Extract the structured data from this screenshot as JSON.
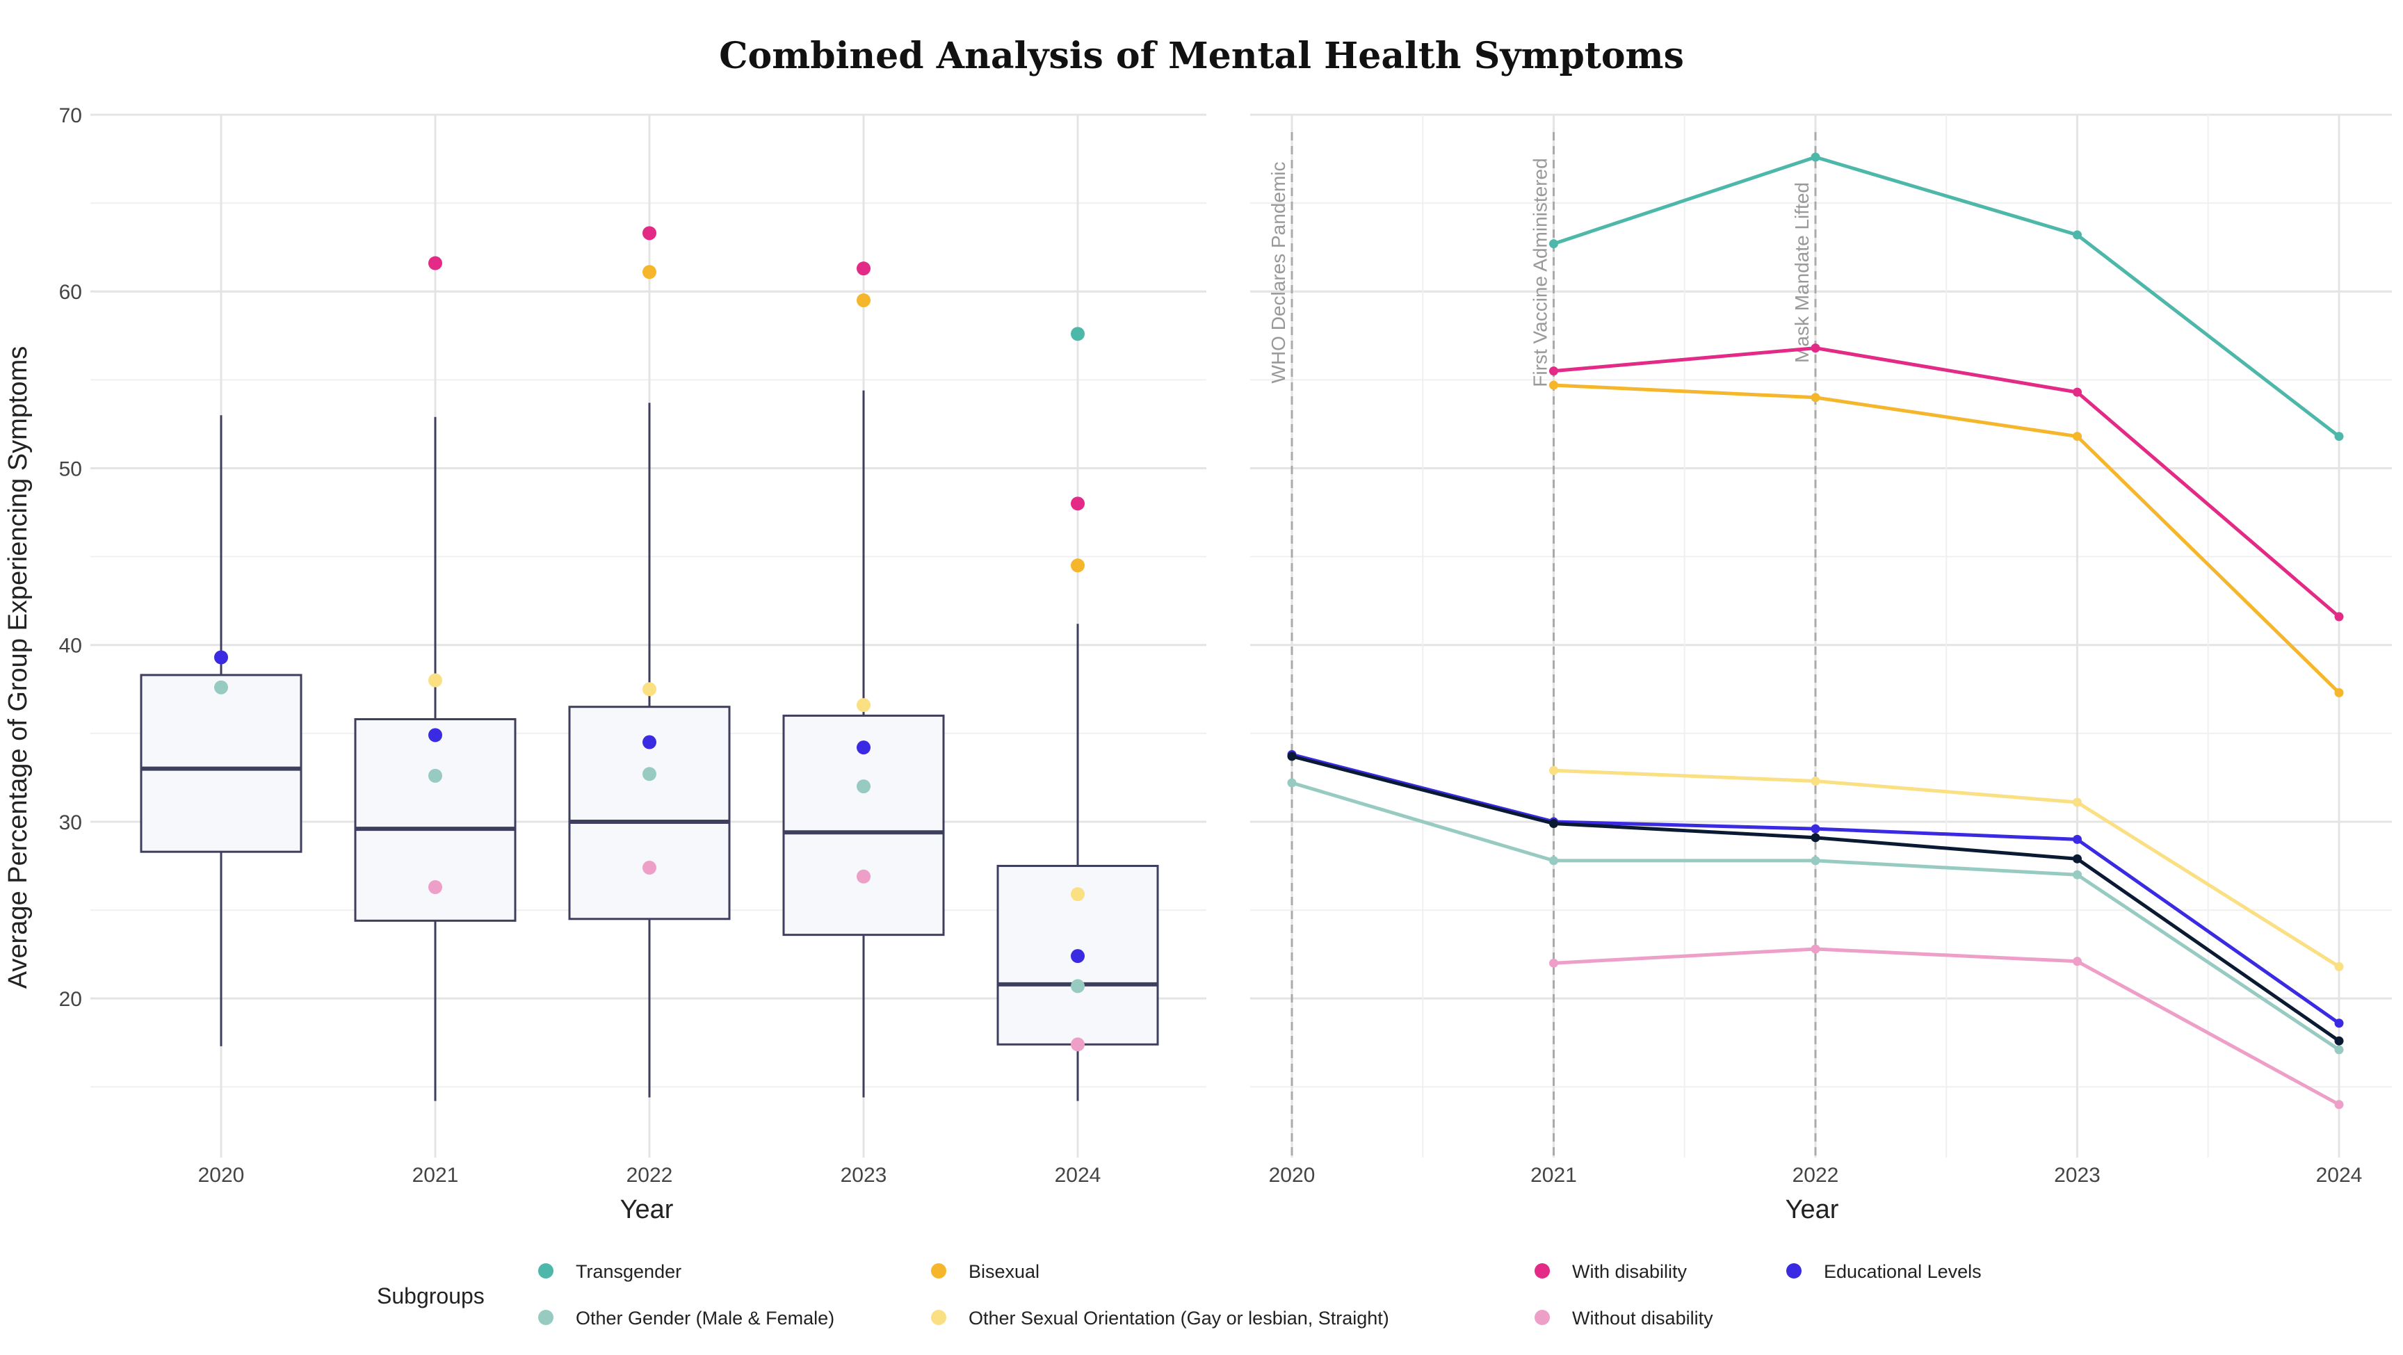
{
  "title": "Combined Analysis of Mental Health Symptoms",
  "legend": {
    "title": "Subgroups",
    "items": [
      {
        "label": "Transgender",
        "color": "#4DB8A9"
      },
      {
        "label": "Other Gender (Male & Female)",
        "color": "#97CBC2"
      },
      {
        "label": "Bisexual",
        "color": "#F6B62B"
      },
      {
        "label": "Other Sexual Orientation (Gay or lesbian, Straight)",
        "color": "#FADF83"
      },
      {
        "label": "With disability",
        "color": "#E22A86"
      },
      {
        "label": "Without disability",
        "color": "#ED9FC8"
      },
      {
        "label": "Educational Levels",
        "color": "#3A2BE2"
      }
    ]
  },
  "chart_data": [
    {
      "type": "box",
      "panel": "left",
      "ylabel": "Average Percentage of Group Experiencing Symptoms",
      "xlabel": "Year",
      "categories": [
        "2020",
        "2021",
        "2022",
        "2023",
        "2024"
      ],
      "ylim": [
        11,
        70
      ],
      "yticks": [
        20,
        30,
        40,
        50,
        60,
        70
      ],
      "grid": true,
      "box_fill": "#F7F8FB",
      "box_stroke": "#3E3E5E",
      "boxes": [
        {
          "category": "2020",
          "q1": 28.3,
          "median": 33.0,
          "q3": 38.3,
          "whisker_low": 17.3,
          "whisker_high": 53.0
        },
        {
          "category": "2021",
          "q1": 24.4,
          "median": 29.6,
          "q3": 35.8,
          "whisker_low": 14.2,
          "whisker_high": 52.9
        },
        {
          "category": "2022",
          "q1": 24.5,
          "median": 30.0,
          "q3": 36.5,
          "whisker_low": 14.4,
          "whisker_high": 53.7
        },
        {
          "category": "2023",
          "q1": 23.6,
          "median": 29.4,
          "q3": 36.0,
          "whisker_low": 14.4,
          "whisker_high": 54.4
        },
        {
          "category": "2024",
          "q1": 17.4,
          "median": 20.8,
          "q3": 27.5,
          "whisker_low": 14.2,
          "whisker_high": 41.2
        }
      ],
      "points": [
        {
          "category": "2020",
          "series": "Educational Levels",
          "value": 39.3
        },
        {
          "category": "2020",
          "series": "Other Gender (Male & Female)",
          "value": 37.6
        },
        {
          "category": "2021",
          "series": "With disability",
          "value": 61.6
        },
        {
          "category": "2021",
          "series": "Other Sexual Orientation (Gay or lesbian, Straight)",
          "value": 38.0
        },
        {
          "category": "2021",
          "series": "Educational Levels",
          "value": 34.9
        },
        {
          "category": "2021",
          "series": "Other Gender (Male & Female)",
          "value": 32.6
        },
        {
          "category": "2021",
          "series": "Without disability",
          "value": 26.3
        },
        {
          "category": "2022",
          "series": "With disability",
          "value": 63.3
        },
        {
          "category": "2022",
          "series": "Bisexual",
          "value": 61.1
        },
        {
          "category": "2022",
          "series": "Other Sexual Orientation (Gay or lesbian, Straight)",
          "value": 37.5
        },
        {
          "category": "2022",
          "series": "Educational Levels",
          "value": 34.5
        },
        {
          "category": "2022",
          "series": "Other Gender (Male & Female)",
          "value": 32.7
        },
        {
          "category": "2022",
          "series": "Without disability",
          "value": 27.4
        },
        {
          "category": "2023",
          "series": "With disability",
          "value": 61.3
        },
        {
          "category": "2023",
          "series": "Bisexual",
          "value": 59.5
        },
        {
          "category": "2023",
          "series": "Other Sexual Orientation (Gay or lesbian, Straight)",
          "value": 36.6
        },
        {
          "category": "2023",
          "series": "Educational Levels",
          "value": 34.2
        },
        {
          "category": "2023",
          "series": "Other Gender (Male & Female)",
          "value": 32.0
        },
        {
          "category": "2023",
          "series": "Without disability",
          "value": 26.9
        },
        {
          "category": "2024",
          "series": "Transgender",
          "value": 57.6
        },
        {
          "category": "2024",
          "series": "With disability",
          "value": 48.0
        },
        {
          "category": "2024",
          "series": "Bisexual",
          "value": 44.5
        },
        {
          "category": "2024",
          "series": "Other Sexual Orientation (Gay or lesbian, Straight)",
          "value": 25.9
        },
        {
          "category": "2024",
          "series": "Educational Levels",
          "value": 22.4
        },
        {
          "category": "2024",
          "series": "Other Gender (Male & Female)",
          "value": 20.7
        },
        {
          "category": "2024",
          "series": "Without disability",
          "value": 17.4
        }
      ]
    },
    {
      "type": "line",
      "panel": "right",
      "xlabel": "Year",
      "x": [
        "2020",
        "2021",
        "2022",
        "2023",
        "2024"
      ],
      "ylim": [
        11,
        70
      ],
      "grid": true,
      "annotations": [
        {
          "x": "2020",
          "label": "WHO Declares Pandemic"
        },
        {
          "x": "2021",
          "label": "First Vaccine Administered"
        },
        {
          "x": "2022",
          "label": "Mask Mandate Lifted"
        }
      ],
      "series": [
        {
          "name": "Transgender",
          "color": "#4DB8A9",
          "values": [
            null,
            62.7,
            67.6,
            63.2,
            51.8
          ]
        },
        {
          "name": "With disability",
          "color": "#E22A86",
          "values": [
            null,
            55.5,
            56.8,
            54.3,
            41.6
          ]
        },
        {
          "name": "Bisexual",
          "color": "#F6B62B",
          "values": [
            null,
            54.7,
            54.0,
            51.8,
            37.3
          ]
        },
        {
          "name": "Other Sexual Orientation (Gay or lesbian, Straight)",
          "color": "#FADF83",
          "values": [
            null,
            32.9,
            32.3,
            31.1,
            21.8
          ]
        },
        {
          "name": "Other Gender (Male & Female)",
          "color": "#97CBC2",
          "values": [
            32.2,
            27.8,
            27.8,
            27.0,
            17.1
          ]
        },
        {
          "name": "Without disability",
          "color": "#ED9FC8",
          "values": [
            null,
            22.0,
            22.8,
            22.1,
            14.0
          ]
        },
        {
          "name": "Educational Levels",
          "color": "#3A2BE2",
          "values": [
            33.8,
            30.0,
            29.6,
            29.0,
            18.6
          ]
        },
        {
          "color": "#0B1A33",
          "values": [
            33.7,
            29.9,
            29.1,
            27.9,
            17.6
          ]
        }
      ]
    }
  ]
}
